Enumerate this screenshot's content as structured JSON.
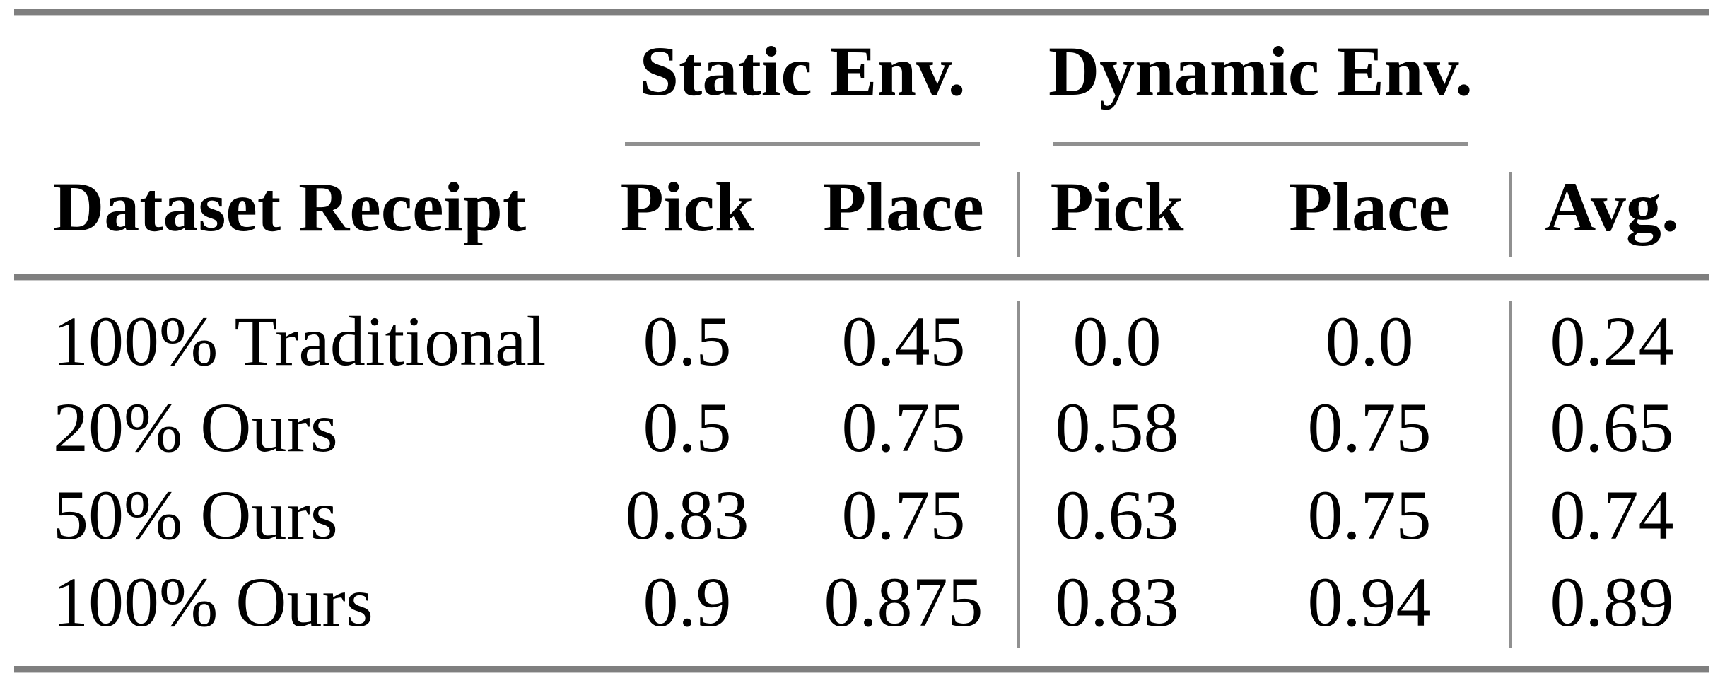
{
  "table": {
    "groups": [
      {
        "label": "Static Env."
      },
      {
        "label": "Dynamic Env."
      }
    ],
    "header": {
      "row_label": "Dataset Receipt",
      "static_pick": "Pick",
      "static_place": "Place",
      "dynamic_pick": "Pick",
      "dynamic_place": "Place",
      "avg": "Avg."
    },
    "rows": [
      {
        "label": "100% Traditional",
        "static_pick": "0.5",
        "static_place": "0.45",
        "dynamic_pick": "0.0",
        "dynamic_place": "0.0",
        "avg": "0.24"
      },
      {
        "label": "20% Ours",
        "static_pick": "0.5",
        "static_place": "0.75",
        "dynamic_pick": "0.58",
        "dynamic_place": "0.75",
        "avg": "0.65"
      },
      {
        "label": "50% Ours",
        "static_pick": "0.83",
        "static_place": "0.75",
        "dynamic_pick": "0.63",
        "dynamic_place": "0.75",
        "avg": "0.74"
      },
      {
        "label": "100% Ours",
        "static_pick": "0.9",
        "static_place": "0.875",
        "dynamic_pick": "0.83",
        "dynamic_place": "0.94",
        "avg": "0.89"
      }
    ],
    "colors": {
      "text": "#000000",
      "thick_rule": "#7f7f7f",
      "thin_rule": "#909090",
      "background": "#ffffff"
    }
  }
}
